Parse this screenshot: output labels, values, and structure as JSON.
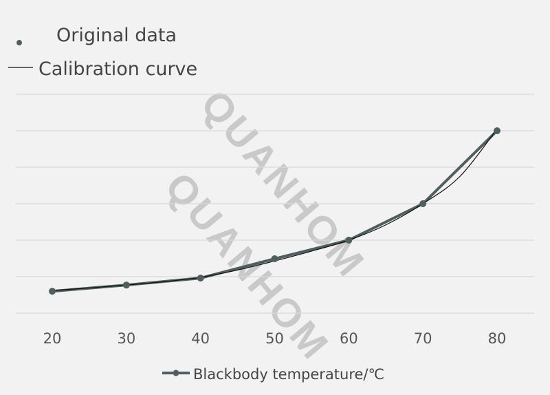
{
  "chart_data": {
    "type": "line",
    "title": "",
    "xlabel": "",
    "ylabel": "",
    "x": [
      20,
      30,
      40,
      50,
      60,
      70,
      80
    ],
    "xlim": [
      20,
      80
    ],
    "ylim": [
      0,
      6
    ],
    "grid": true,
    "legend_placement": "top-left",
    "series": [
      {
        "name": "Original data",
        "style": "markers",
        "values": [
          0.6,
          0.77,
          0.96,
          1.49,
          2.0,
          3.0,
          5.0
        ]
      },
      {
        "name": "Blackbody temperature/℃",
        "style": "line-markers",
        "values": [
          0.6,
          0.77,
          0.96,
          1.49,
          2.0,
          3.0,
          5.0
        ]
      },
      {
        "name": "Calibration curve",
        "style": "thin-line",
        "x": [
          20,
          25,
          30,
          35,
          40,
          45,
          50,
          55,
          60,
          65,
          70,
          75,
          80
        ],
        "values": [
          0.62,
          0.69,
          0.77,
          0.86,
          0.98,
          1.18,
          1.43,
          1.7,
          2.0,
          2.42,
          3.0,
          3.75,
          5.05
        ]
      }
    ],
    "x_tick_labels": [
      "20",
      "30",
      "40",
      "50",
      "60",
      "70",
      "80"
    ],
    "legend_top": [
      "Original data",
      "Calibration curve"
    ],
    "legend_bottom": "Blackbody temperature/℃",
    "colors": {
      "series": "#4f5f5f",
      "calibration": "#111111",
      "grid": "#d9d9d9",
      "background": "#f2f2f2"
    }
  },
  "watermark": "QUANHOM"
}
